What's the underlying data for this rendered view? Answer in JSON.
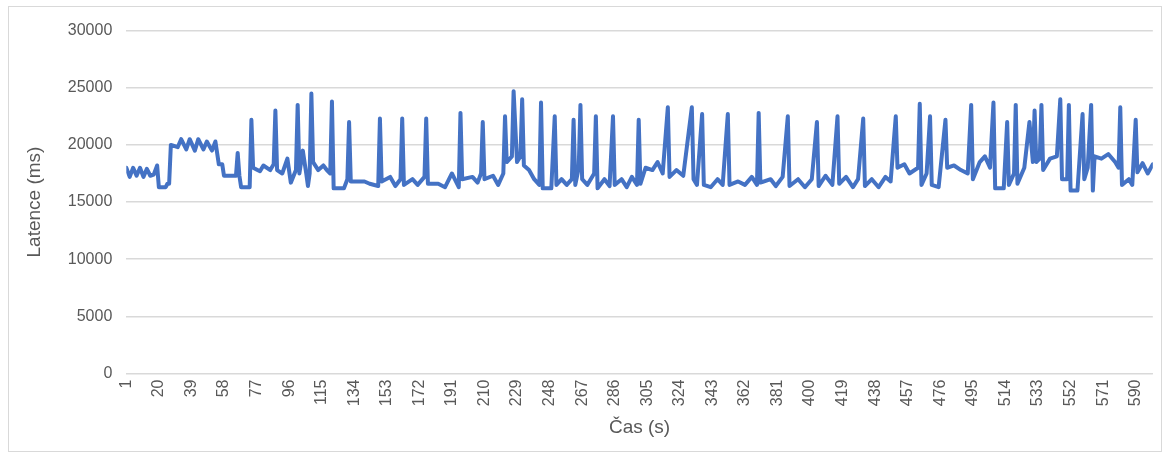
{
  "chart_data": {
    "type": "line",
    "xlabel": "Čas (s)",
    "ylabel": "Latence (ms)",
    "xlim": [
      1,
      600
    ],
    "xticks": [
      1,
      20,
      39,
      58,
      77,
      96,
      115,
      134,
      153,
      172,
      191,
      210,
      229,
      248,
      267,
      286,
      305,
      324,
      343,
      362,
      381,
      400,
      419,
      438,
      457,
      476,
      495,
      514,
      533,
      552,
      571,
      590
    ],
    "ylim": [
      0,
      30000
    ],
    "yticks": [
      0,
      5000,
      10000,
      15000,
      20000,
      25000,
      30000
    ],
    "grid": "y",
    "legend": false,
    "marker": "none",
    "line_style": "solid",
    "series": [
      {
        "color": "#4472c4",
        "x": [
          1,
          3,
          5,
          7,
          9,
          11,
          13,
          15,
          17,
          19,
          20,
          24,
          25,
          26,
          27,
          31,
          33,
          36,
          38,
          41,
          43,
          46,
          48,
          51,
          53,
          55,
          57,
          58,
          65,
          66,
          67,
          68,
          73,
          74,
          75,
          79,
          81,
          85,
          87,
          88,
          89,
          92,
          95,
          97,
          100,
          101,
          102,
          104,
          106,
          107,
          108,
          109,
          110,
          113,
          116,
          118,
          120,
          121,
          122,
          128,
          130,
          131,
          132,
          140,
          143,
          148,
          149,
          150,
          155,
          158,
          161,
          162,
          163,
          168,
          171,
          175,
          176,
          177,
          183,
          187,
          191,
          195,
          196,
          197,
          203,
          206,
          208,
          209,
          210,
          215,
          218,
          221,
          222,
          223,
          226,
          227,
          229,
          231,
          232,
          233,
          236,
          239,
          242,
          243,
          244,
          249,
          251,
          252,
          255,
          258,
          261,
          262,
          263,
          265,
          266,
          267,
          270,
          274,
          275,
          276,
          280,
          283,
          285,
          286,
          290,
          293,
          296,
          299,
          300,
          301,
          304,
          308,
          311,
          314,
          317,
          318,
          322,
          326,
          331,
          332,
          334,
          337,
          338,
          342,
          346,
          349,
          352,
          353,
          358,
          362,
          366,
          369,
          370,
          371,
          377,
          380,
          384,
          387,
          388,
          393,
          397,
          401,
          404,
          405,
          409,
          413,
          416,
          417,
          421,
          425,
          428,
          431,
          432,
          436,
          440,
          444,
          447,
          450,
          451,
          455,
          458,
          463,
          464,
          465,
          468,
          470,
          471,
          475,
          479,
          480,
          484,
          488,
          492,
          494,
          495,
          499,
          502,
          505,
          507,
          508,
          513,
          515,
          516,
          519,
          520,
          521,
          525,
          528,
          530,
          531,
          532,
          534,
          535,
          536,
          540,
          544,
          546,
          547,
          550,
          551,
          552,
          556,
          559,
          560,
          562,
          564,
          565,
          566,
          570,
          574,
          578,
          580,
          581,
          582,
          586,
          588,
          590,
          591,
          594,
          597,
          600
        ],
        "values": [
          18000,
          17200,
          18000,
          17300,
          18000,
          17200,
          17900,
          17300,
          17400,
          18200,
          16300,
          16300,
          16600,
          16600,
          20000,
          19800,
          20500,
          19600,
          20500,
          19500,
          20500,
          19600,
          20300,
          19500,
          20300,
          18300,
          18300,
          17300,
          17300,
          19300,
          17300,
          16300,
          16300,
          22200,
          18000,
          17700,
          18200,
          17800,
          18300,
          23000,
          17800,
          17500,
          18800,
          16700,
          17800,
          23500,
          17500,
          19500,
          17500,
          16400,
          17500,
          24500,
          18500,
          17800,
          18200,
          17800,
          17500,
          23800,
          16200,
          16200,
          17000,
          22000,
          16800,
          16800,
          16600,
          16400,
          22300,
          16800,
          17200,
          16400,
          17000,
          22300,
          16500,
          17000,
          16500,
          17200,
          22300,
          16600,
          16600,
          16300,
          17500,
          16300,
          22800,
          17000,
          17200,
          16700,
          17500,
          22000,
          17000,
          17300,
          16500,
          17500,
          22500,
          18500,
          19000,
          24700,
          18500,
          19000,
          24000,
          18200,
          17800,
          17000,
          16500,
          23700,
          16200,
          16200,
          22500,
          16500,
          17000,
          16500,
          17000,
          22200,
          16500,
          18000,
          23500,
          17000,
          16500,
          17500,
          22500,
          16200,
          17000,
          16400,
          22500,
          16500,
          17000,
          16300,
          17200,
          16500,
          22200,
          16600,
          18000,
          17800,
          18500,
          17500,
          23300,
          17200,
          17800,
          17300,
          23300,
          17000,
          16500,
          22700,
          16500,
          16300,
          17000,
          16500,
          22700,
          16500,
          16800,
          16500,
          17200,
          16500,
          22800,
          16700,
          17000,
          16400,
          17200,
          22500,
          16400,
          17000,
          16300,
          17000,
          22000,
          16400,
          17300,
          16500,
          22500,
          16600,
          17200,
          16300,
          17000,
          22300,
          16400,
          17000,
          16300,
          17200,
          16800,
          22500,
          18000,
          18300,
          17500,
          18000,
          23600,
          16500,
          17500,
          22500,
          16500,
          16300,
          22200,
          18000,
          18200,
          17800,
          17500,
          23500,
          17000,
          18500,
          19000,
          18000,
          23700,
          16200,
          16200,
          22000,
          16500,
          17500,
          23500,
          16600,
          18000,
          22000,
          18500,
          23000,
          18500,
          18800,
          23500,
          17800,
          18800,
          19000,
          24000,
          17000,
          17000,
          23500,
          16000,
          16000,
          22700,
          17000,
          18000,
          23500,
          16000,
          19000,
          18800,
          19200,
          18500,
          18000,
          23300,
          16500,
          17000,
          16500,
          22200,
          17600,
          18400,
          17500,
          18300
        ]
      }
    ]
  }
}
